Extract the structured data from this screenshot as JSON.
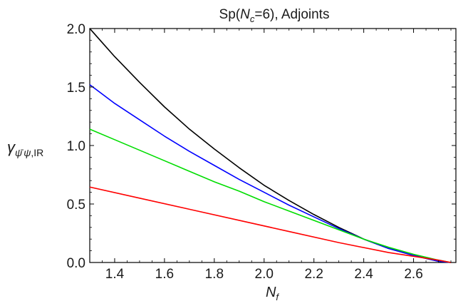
{
  "chart_data": {
    "type": "line",
    "title": "Sp(N_c=6), Adjoints",
    "title_parts": {
      "prefix": "Sp(",
      "var": "N",
      "sub": "c",
      "suffix": "=6), Adjoints"
    },
    "xlabel": "N_f",
    "xlabel_parts": {
      "var": "N",
      "sub": "f"
    },
    "ylabel": "γ_{ψ̄ψ,IR}",
    "ylabel_parts": {
      "gamma": "γ",
      "psibar": "ψ̄",
      "psi": "ψ",
      "suffix": ",IR"
    },
    "xlim": [
      1.3,
      2.77
    ],
    "ylim": [
      0.0,
      2.0
    ],
    "x_ticks": [
      1.4,
      1.6,
      1.8,
      2.0,
      2.2,
      2.4,
      2.6
    ],
    "x_tick_labels": [
      "1.4",
      "1.6",
      "1.8",
      "2.0",
      "2.2",
      "2.4",
      "2.6"
    ],
    "y_ticks": [
      0.0,
      0.5,
      1.0,
      1.5,
      2.0
    ],
    "y_tick_labels": [
      "0.0",
      "0.5",
      "1.0",
      "1.5",
      "2.0"
    ],
    "grid": false,
    "legend": "none",
    "series": [
      {
        "color": "#000000",
        "x": [
          1.3,
          1.35,
          1.4,
          1.5,
          1.6,
          1.7,
          1.8,
          1.9,
          2.0,
          2.1,
          2.2,
          2.3,
          2.4,
          2.5,
          2.6,
          2.7,
          2.75
        ],
        "y": [
          2.0,
          1.88,
          1.76,
          1.54,
          1.33,
          1.14,
          0.97,
          0.81,
          0.66,
          0.53,
          0.41,
          0.3,
          0.2,
          0.12,
          0.06,
          0.01,
          0.0
        ]
      },
      {
        "color": "#0000ff",
        "x": [
          1.3,
          1.4,
          1.5,
          1.6,
          1.7,
          1.8,
          1.9,
          2.0,
          2.1,
          2.2,
          2.3,
          2.4,
          2.5,
          2.6,
          2.7,
          2.75
        ],
        "y": [
          1.52,
          1.36,
          1.22,
          1.08,
          0.95,
          0.83,
          0.71,
          0.6,
          0.49,
          0.39,
          0.29,
          0.2,
          0.12,
          0.06,
          0.01,
          0.0
        ]
      },
      {
        "color": "#00dd00",
        "x": [
          1.3,
          1.4,
          1.5,
          1.6,
          1.7,
          1.8,
          1.9,
          2.0,
          2.1,
          2.2,
          2.3,
          2.4,
          2.5,
          2.6,
          2.7,
          2.75
        ],
        "y": [
          1.14,
          1.05,
          0.96,
          0.87,
          0.78,
          0.69,
          0.61,
          0.52,
          0.44,
          0.36,
          0.28,
          0.2,
          0.13,
          0.07,
          0.02,
          0.0
        ]
      },
      {
        "color": "#ff0000",
        "x": [
          1.3,
          1.5,
          1.7,
          1.9,
          2.1,
          2.3,
          2.5,
          2.7,
          2.75
        ],
        "y": [
          0.645,
          0.55,
          0.455,
          0.36,
          0.265,
          0.17,
          0.085,
          0.02,
          0.0
        ]
      }
    ]
  }
}
